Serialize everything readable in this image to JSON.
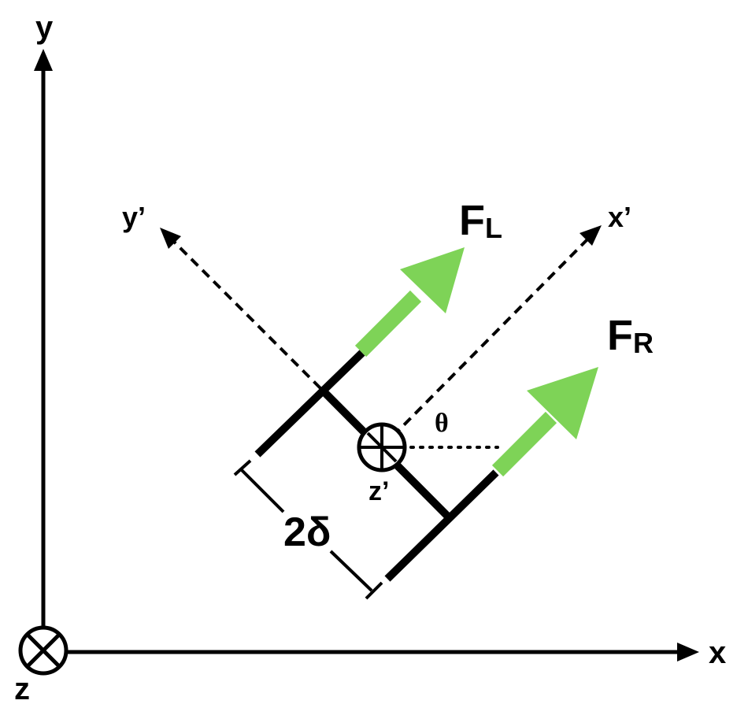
{
  "axes": {
    "x_label": "x",
    "y_label": "y",
    "z_label": "z",
    "x_prime_label": "x’",
    "y_prime_label": "y’",
    "z_prime_label": "z’"
  },
  "forces": {
    "left": {
      "base": "F",
      "subscript": "L"
    },
    "right": {
      "base": "F",
      "subscript": "R"
    }
  },
  "dimension_label": "2δ",
  "angle_label": "θ",
  "colors": {
    "force_arrow": "#7ed357",
    "line": "#000000",
    "background": "#ffffff"
  }
}
